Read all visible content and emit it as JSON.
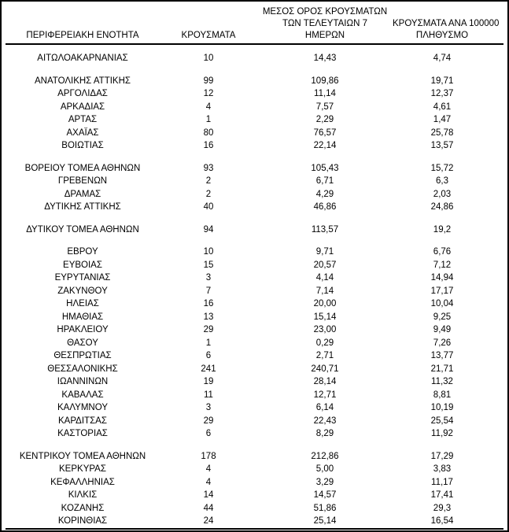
{
  "page": {
    "background_color": "#ffffff",
    "text_color": "#000000",
    "border_color": "#000000"
  },
  "table": {
    "headers": {
      "region": "ΠΕΡΙΦΕΡΕΙΑΚΗ ΕΝΟΤΗΤΑ",
      "cases": "ΚΡΟΥΣΜΑΤΑ",
      "avg7_line1": "ΜΕΣΟΣ ΟΡΟΣ ΚΡΟΥΣΜΑΤΩΝ",
      "avg7_line2": "ΤΩΝ ΤΕΛΕΥΤΑΙΩΝ 7",
      "avg7_line3": "ΗΜΕΡΩΝ",
      "per100k_line1": "ΚΡΟΥΣΜΑΤΑ ΑΝΑ 100000",
      "per100k_line2": "ΠΛΗΘΥΣΜΟ"
    },
    "groups": [
      {
        "rows": [
          [
            "ΑΙΤΩΛΟΑΚΑΡΝΑΝΙΑΣ",
            "10",
            "14,43",
            "4,74"
          ]
        ]
      },
      {
        "rows": [
          [
            "ΑΝΑΤΟΛΙΚΗΣ ΑΤΤΙΚΗΣ",
            "99",
            "109,86",
            "19,71"
          ],
          [
            "ΑΡΓΟΛΙΔΑΣ",
            "12",
            "11,14",
            "12,37"
          ],
          [
            "ΑΡΚΑΔΙΑΣ",
            "4",
            "7,57",
            "4,61"
          ],
          [
            "ΑΡΤΑΣ",
            "1",
            "2,29",
            "1,47"
          ],
          [
            "ΑΧΑΪΑΣ",
            "80",
            "76,57",
            "25,78"
          ],
          [
            "ΒΟΙΩΤΙΑΣ",
            "16",
            "22,14",
            "13,57"
          ]
        ]
      },
      {
        "rows": [
          [
            "ΒΟΡΕΙΟΥ ΤΟΜΕΑ ΑΘΗΝΩΝ",
            "93",
            "105,43",
            "15,72"
          ],
          [
            "ΓΡΕΒΕΝΩΝ",
            "2",
            "6,71",
            "6,3"
          ],
          [
            "ΔΡΑΜΑΣ",
            "2",
            "4,29",
            "2,03"
          ],
          [
            "ΔΥΤΙΚΗΣ ΑΤΤΙΚΗΣ",
            "40",
            "46,86",
            "24,86"
          ]
        ]
      },
      {
        "rows": [
          [
            "ΔΥΤΙΚΟΥ ΤΟΜΕΑ ΑΘΗΝΩΝ",
            "94",
            "113,57",
            "19,2"
          ]
        ]
      },
      {
        "rows": [
          [
            "ΕΒΡΟΥ",
            "10",
            "9,71",
            "6,76"
          ],
          [
            "ΕΥΒΟΙΑΣ",
            "15",
            "20,57",
            "7,12"
          ],
          [
            "ΕΥΡΥΤΑΝΙΑΣ",
            "3",
            "4,14",
            "14,94"
          ],
          [
            "ΖΑΚΥΝΘΟΥ",
            "7",
            "7,14",
            "17,17"
          ],
          [
            "ΗΛΕΙΑΣ",
            "16",
            "20,00",
            "10,04"
          ],
          [
            "ΗΜΑΘΙΑΣ",
            "13",
            "15,14",
            "9,25"
          ],
          [
            "ΗΡΑΚΛΕΙΟΥ",
            "29",
            "23,00",
            "9,49"
          ],
          [
            "ΘΑΣΟΥ",
            "1",
            "0,29",
            "7,26"
          ],
          [
            "ΘΕΣΠΡΩΤΙΑΣ",
            "6",
            "2,71",
            "13,77"
          ],
          [
            "ΘΕΣΣΑΛΟΝΙΚΗΣ",
            "241",
            "240,71",
            "21,71"
          ],
          [
            "ΙΩΑΝΝΙΝΩΝ",
            "19",
            "28,14",
            "11,32"
          ],
          [
            "ΚΑΒΑΛΑΣ",
            "11",
            "12,71",
            "8,81"
          ],
          [
            "ΚΑΛΥΜΝΟΥ",
            "3",
            "6,14",
            "10,19"
          ],
          [
            "ΚΑΡΔΙΤΣΑΣ",
            "29",
            "22,43",
            "25,54"
          ],
          [
            "ΚΑΣΤΟΡΙΑΣ",
            "6",
            "8,29",
            "11,92"
          ]
        ]
      },
      {
        "rows": [
          [
            "ΚΕΝΤΡΙΚΟΥ ΤΟΜΕΑ ΑΘΗΝΩΝ",
            "178",
            "212,86",
            "17,29"
          ],
          [
            "ΚΕΡΚΥΡΑΣ",
            "4",
            "5,00",
            "3,83"
          ],
          [
            "ΚΕΦΑΛΛΗΝΙΑΣ",
            "4",
            "3,29",
            "11,17"
          ],
          [
            "ΚΙΛΚΙΣ",
            "14",
            "14,57",
            "17,41"
          ],
          [
            "ΚΟΖΑΝΗΣ",
            "44",
            "51,86",
            "29,3"
          ],
          [
            "ΚΟΡΙΝΘΙΑΣ",
            "24",
            "25,14",
            "16,54"
          ]
        ]
      }
    ]
  }
}
